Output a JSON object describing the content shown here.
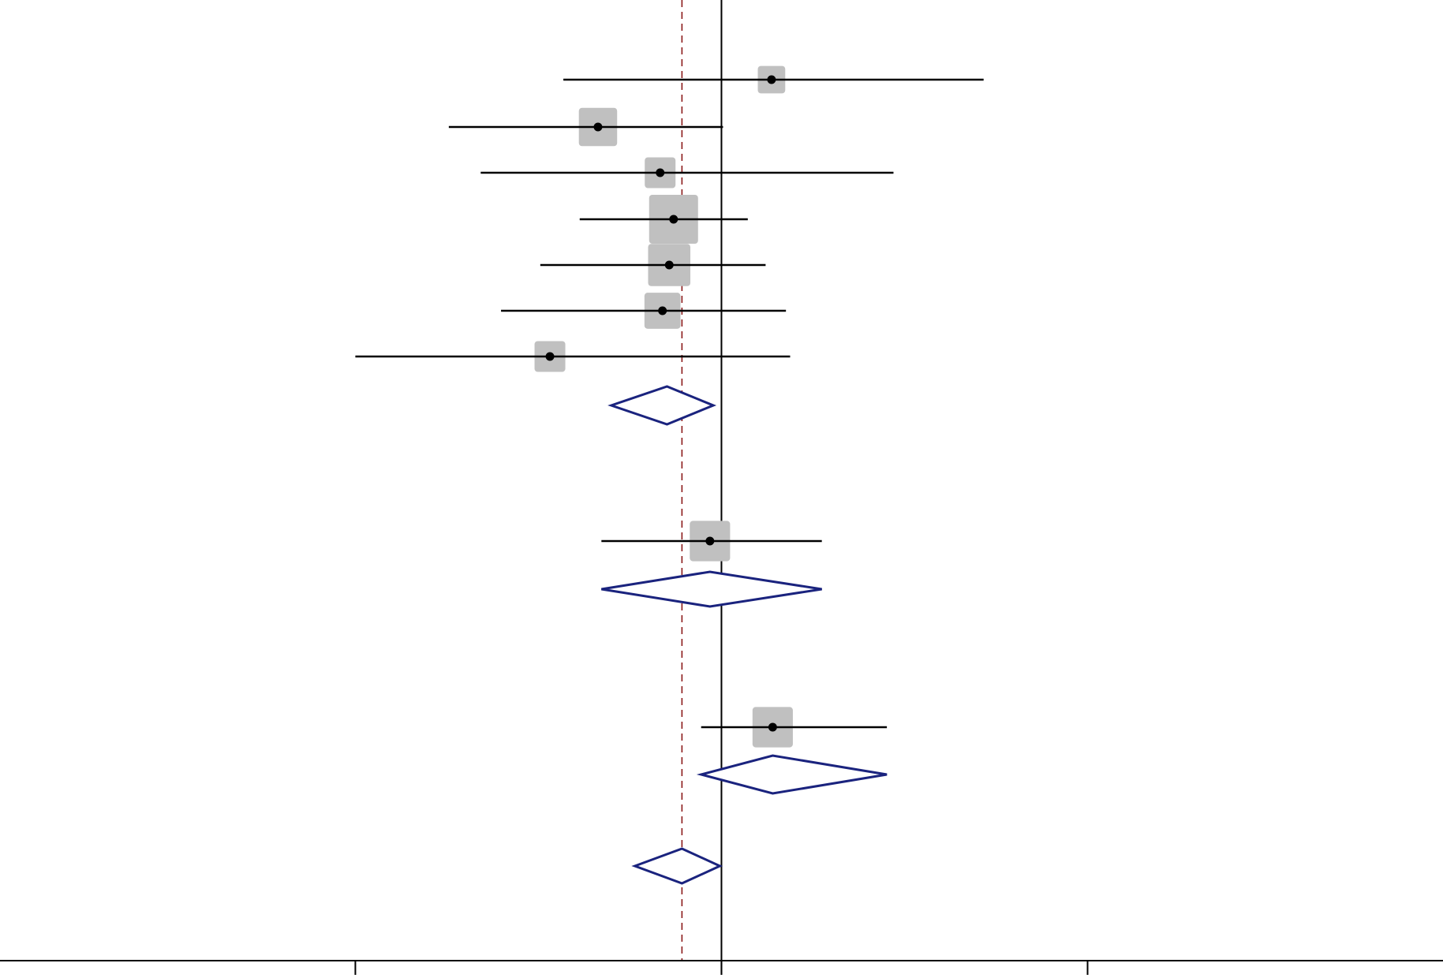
{
  "chart_data": {
    "type": "forest",
    "title": "",
    "xlabel": "",
    "ylabel": "",
    "x_scale": "log",
    "x_ticks": [
      0.1,
      1,
      10
    ],
    "xlim": [
      0.0107,
      93.5
    ],
    "null_line": 1,
    "overall_line": 0.78,
    "grid": false,
    "studies": [
      {
        "estimate": 1.37,
        "lower": 0.37,
        "upper": 5.2,
        "weight": 1.0
      },
      {
        "estimate": 0.46,
        "lower": 0.18,
        "upper": 1.01,
        "weight": 3.0
      },
      {
        "estimate": 0.68,
        "lower": 0.22,
        "upper": 2.95,
        "weight": 1.5
      },
      {
        "estimate": 0.74,
        "lower": 0.41,
        "upper": 1.18,
        "weight": 6.0
      },
      {
        "estimate": 0.72,
        "lower": 0.32,
        "upper": 1.32,
        "weight": 4.0
      },
      {
        "estimate": 0.69,
        "lower": 0.25,
        "upper": 1.5,
        "weight": 2.5
      },
      {
        "estimate": 0.34,
        "lower": 0.1,
        "upper": 1.54,
        "weight": 1.5
      },
      {
        "estimate": 0.93,
        "lower": 0.47,
        "upper": 1.88,
        "weight": 3.5
      },
      {
        "estimate": 1.38,
        "lower": 0.88,
        "upper": 2.83,
        "weight": 3.5
      }
    ],
    "pooled": [
      {
        "estimate": 0.71,
        "lower": 0.5,
        "upper": 0.95
      },
      {
        "estimate": 0.93,
        "lower": 0.47,
        "upper": 1.88
      },
      {
        "estimate": 1.38,
        "lower": 0.88,
        "upper": 2.83
      },
      {
        "estimate": 0.78,
        "lower": 0.58,
        "upper": 0.99
      }
    ],
    "colors": {
      "ci_line": "#000000",
      "weight_box": "#c0c0c0",
      "diamond": "#1a237e",
      "overall_line": "#8b1a1a",
      "axis": "#000000"
    }
  }
}
